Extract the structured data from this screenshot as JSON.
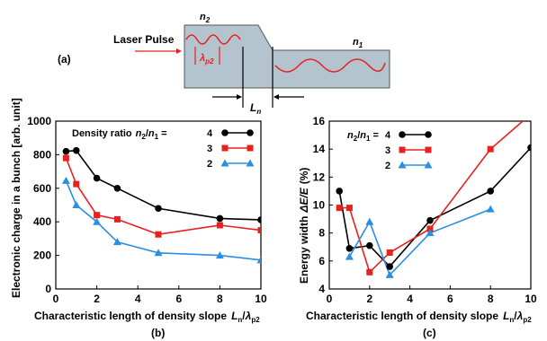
{
  "colors": {
    "black": "#000000",
    "red": "#e8201e",
    "blue": "#2a8fe0",
    "plasma_fill": "#b4c4cf",
    "plasma_stroke": "#555555"
  },
  "diagram": {
    "panel_label": "(a)",
    "laser_label": "Laser Pulse",
    "n2_label": "n",
    "n2_sub": "2",
    "n1_label": "n",
    "n1_sub": "1",
    "lambda_label": "λ",
    "lambda_sub": "p2",
    "ln_label": "L",
    "ln_sub": "n"
  },
  "chart_data": [
    {
      "type": "line",
      "panel": "(b)",
      "xlabel": "Characteristic length of density slope",
      "xlabel_sym": "L",
      "xlabel_sym_sub": "n",
      "xlabel_sep": "/",
      "xlabel_sym2": "λ",
      "xlabel_sym2_sub": "p2",
      "ylabel": "Electronic charge in a bunch [arb. unit]",
      "xlim": [
        0,
        10
      ],
      "ylim": [
        0,
        1000
      ],
      "xticks": [
        0,
        2,
        4,
        6,
        8,
        10
      ],
      "yticks": [
        0,
        200,
        400,
        600,
        800,
        1000
      ],
      "legend_title": "Density ratio",
      "legend_ratio": "n",
      "legend_ratio_sub2": "2",
      "legend_ratio_sep": "/",
      "legend_ratio_sub1": "1",
      "legend_eq": "=",
      "series": [
        {
          "name": "4",
          "color": "#000000",
          "marker": "circle",
          "x": [
            0.5,
            1,
            2,
            3,
            5,
            8,
            10
          ],
          "y": [
            820,
            825,
            660,
            600,
            480,
            420,
            412
          ]
        },
        {
          "name": "3",
          "color": "#e8201e",
          "marker": "square",
          "x": [
            0.5,
            1,
            2,
            3,
            5,
            8,
            10
          ],
          "y": [
            780,
            625,
            440,
            415,
            325,
            380,
            350
          ]
        },
        {
          "name": "2",
          "color": "#2a8fe0",
          "marker": "triangle",
          "x": [
            0.5,
            1,
            2,
            3,
            5,
            8,
            10
          ],
          "y": [
            645,
            500,
            400,
            280,
            215,
            200,
            172
          ]
        }
      ]
    },
    {
      "type": "line",
      "panel": "(c)",
      "xlabel": "Characteristic length of density slope",
      "xlabel_sym": "L",
      "xlabel_sym_sub": "n",
      "xlabel_sep": "/",
      "xlabel_sym2": "λ",
      "xlabel_sym2_sub": "p2",
      "ylabel": "Energy width",
      "ylabel_sym": "ΔE/E",
      "ylabel_unit": "(%)",
      "xlim": [
        0,
        10
      ],
      "ylim": [
        4,
        16
      ],
      "xticks": [
        0,
        2,
        4,
        6,
        8,
        10
      ],
      "yticks": [
        4,
        6,
        8,
        10,
        12,
        14,
        16
      ],
      "legend_ratio": "n",
      "legend_ratio_sub2": "2",
      "legend_ratio_sep": "/",
      "legend_ratio_sub1": "1",
      "legend_eq": "=",
      "series": [
        {
          "name": "4",
          "color": "#000000",
          "marker": "circle",
          "x": [
            0.5,
            1,
            2,
            3,
            5,
            8,
            10
          ],
          "y": [
            11.0,
            6.9,
            7.1,
            5.6,
            8.9,
            11.0,
            14.1
          ]
        },
        {
          "name": "3",
          "color": "#e8201e",
          "marker": "square",
          "x": [
            0.5,
            1,
            2,
            3,
            5,
            8,
            10
          ],
          "y": [
            9.8,
            9.8,
            5.2,
            6.6,
            8.3,
            14.0,
            16.5
          ]
        },
        {
          "name": "2",
          "color": "#2a8fe0",
          "marker": "triangle",
          "x": [
            1,
            2,
            3,
            5,
            8
          ],
          "y": [
            6.3,
            8.8,
            5.0,
            8.0,
            9.7
          ]
        }
      ]
    }
  ]
}
